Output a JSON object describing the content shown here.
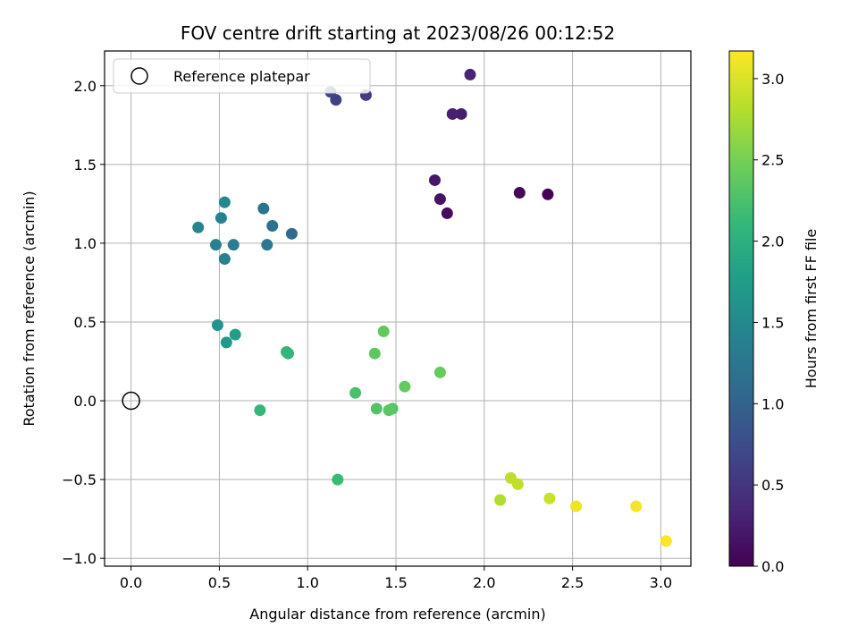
{
  "chart_data": {
    "type": "scatter",
    "title": "FOV centre drift starting at 2023/08/26 00:12:52",
    "xlabel": "Angular distance from reference (arcmin)",
    "ylabel": "Rotation from reference (arcmin)",
    "xlim": [
      -0.15,
      3.17
    ],
    "ylim": [
      -1.05,
      2.22
    ],
    "xticks": [
      0.0,
      0.5,
      1.0,
      1.5,
      2.0,
      2.5,
      3.0
    ],
    "xtick_labels": [
      "0.0",
      "0.5",
      "1.0",
      "1.5",
      "2.0",
      "2.5",
      "3.0"
    ],
    "yticks": [
      -1.0,
      -0.5,
      0.0,
      0.5,
      1.0,
      1.5,
      2.0
    ],
    "ytick_labels": [
      "−1.0",
      "−0.5",
      "0.0",
      "0.5",
      "1.0",
      "1.5",
      "2.0"
    ],
    "grid": true,
    "colormap": "viridis",
    "colorbar": {
      "label": "Hours from first FF file",
      "range": [
        0.0,
        3.17
      ],
      "ticks": [
        0.0,
        0.5,
        1.0,
        1.5,
        2.0,
        2.5,
        3.0
      ],
      "tick_labels": [
        "0.0",
        "0.5",
        "1.0",
        "1.5",
        "2.0",
        "2.5",
        "3.0"
      ]
    },
    "legend": {
      "placement": "top-left",
      "entries": [
        {
          "label": "Reference platepar",
          "marker": "open-circle"
        }
      ]
    },
    "reference_point": {
      "x": 0.0,
      "y": 0.0
    },
    "points": [
      {
        "x": 2.36,
        "y": 1.31,
        "t": 0.02
      },
      {
        "x": 2.2,
        "y": 1.32,
        "t": 0.05
      },
      {
        "x": 1.79,
        "y": 1.19,
        "t": 0.1
      },
      {
        "x": 1.75,
        "y": 1.28,
        "t": 0.15
      },
      {
        "x": 1.72,
        "y": 1.4,
        "t": 0.2
      },
      {
        "x": 1.87,
        "y": 1.82,
        "t": 0.25
      },
      {
        "x": 1.82,
        "y": 1.82,
        "t": 0.28
      },
      {
        "x": 1.92,
        "y": 2.07,
        "t": 0.32
      },
      {
        "x": 1.33,
        "y": 1.94,
        "t": 0.55
      },
      {
        "x": 1.16,
        "y": 1.91,
        "t": 0.62
      },
      {
        "x": 1.13,
        "y": 1.96,
        "t": 0.68
      },
      {
        "x": 0.91,
        "y": 1.06,
        "t": 1.1
      },
      {
        "x": 0.8,
        "y": 1.11,
        "t": 1.18
      },
      {
        "x": 0.75,
        "y": 1.22,
        "t": 1.25
      },
      {
        "x": 0.77,
        "y": 0.99,
        "t": 1.3
      },
      {
        "x": 0.58,
        "y": 0.99,
        "t": 1.35
      },
      {
        "x": 0.53,
        "y": 0.9,
        "t": 1.38
      },
      {
        "x": 0.48,
        "y": 0.99,
        "t": 1.4
      },
      {
        "x": 0.51,
        "y": 1.16,
        "t": 1.42
      },
      {
        "x": 0.38,
        "y": 1.1,
        "t": 1.45
      },
      {
        "x": 0.53,
        "y": 1.26,
        "t": 1.5
      },
      {
        "x": 0.49,
        "y": 0.48,
        "t": 1.65
      },
      {
        "x": 0.54,
        "y": 0.37,
        "t": 1.72
      },
      {
        "x": 0.59,
        "y": 0.42,
        "t": 1.78
      },
      {
        "x": 0.89,
        "y": 0.3,
        "t": 2.05
      },
      {
        "x": 0.88,
        "y": 0.31,
        "t": 2.08
      },
      {
        "x": 0.73,
        "y": -0.06,
        "t": 2.12
      },
      {
        "x": 1.17,
        "y": -0.5,
        "t": 2.15
      },
      {
        "x": 1.27,
        "y": 0.05,
        "t": 2.25
      },
      {
        "x": 1.39,
        "y": -0.05,
        "t": 2.3
      },
      {
        "x": 1.48,
        "y": -0.05,
        "t": 2.32
      },
      {
        "x": 1.46,
        "y": -0.06,
        "t": 2.34
      },
      {
        "x": 1.38,
        "y": 0.3,
        "t": 2.36
      },
      {
        "x": 1.43,
        "y": 0.44,
        "t": 2.38
      },
      {
        "x": 1.55,
        "y": 0.09,
        "t": 2.4
      },
      {
        "x": 1.75,
        "y": 0.18,
        "t": 2.42
      },
      {
        "x": 2.09,
        "y": -0.63,
        "t": 2.8
      },
      {
        "x": 2.15,
        "y": -0.49,
        "t": 2.85
      },
      {
        "x": 2.19,
        "y": -0.53,
        "t": 2.87
      },
      {
        "x": 2.37,
        "y": -0.62,
        "t": 2.92
      },
      {
        "x": 2.52,
        "y": -0.67,
        "t": 3.1
      },
      {
        "x": 2.86,
        "y": -0.67,
        "t": 3.12
      },
      {
        "x": 3.03,
        "y": -0.89,
        "t": 3.15
      }
    ]
  }
}
